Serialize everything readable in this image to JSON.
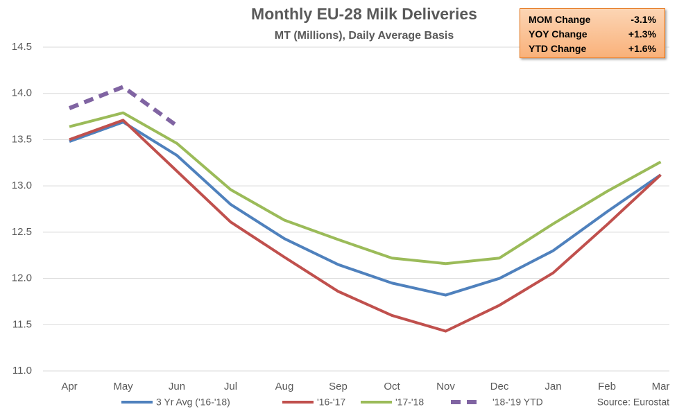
{
  "chart_data": {
    "type": "line",
    "title": "Monthly EU-28 Milk Deliveries",
    "subtitle": "MT (Millions), Daily Average Basis",
    "source": "Source: Eurostat",
    "categories": [
      "Apr",
      "May",
      "Jun",
      "Jul",
      "Aug",
      "Sep",
      "Oct",
      "Nov",
      "Dec",
      "Jan",
      "Feb",
      "Mar"
    ],
    "series": [
      {
        "name": "3 Yr Avg ('16-'18)",
        "color": "#4f81bd",
        "dashed": false,
        "values": [
          13.48,
          13.69,
          13.33,
          12.8,
          12.43,
          12.15,
          11.95,
          11.82,
          12.0,
          12.3,
          12.72,
          13.12
        ]
      },
      {
        "name": "'16-'17",
        "color": "#c0504d",
        "dashed": false,
        "values": [
          13.5,
          13.71,
          13.16,
          12.61,
          12.23,
          11.86,
          11.6,
          11.43,
          11.71,
          12.06,
          12.58,
          13.12
        ]
      },
      {
        "name": "'17-'18",
        "color": "#9bbb59",
        "dashed": false,
        "values": [
          13.64,
          13.79,
          13.46,
          12.96,
          12.63,
          12.42,
          12.22,
          12.16,
          12.22,
          12.59,
          12.94,
          13.26
        ]
      },
      {
        "name": "'18-'19 YTD",
        "color": "#8064a2",
        "dashed": true,
        "values": [
          13.84,
          14.07,
          13.65,
          null,
          null,
          null,
          null,
          null,
          null,
          null,
          null,
          null
        ]
      }
    ],
    "ylim": [
      11.0,
      14.5
    ],
    "yticks": [
      {
        "value": 11.0,
        "label": "11.0"
      },
      11.5,
      {
        "value": 12.0,
        "label": "12.0"
      },
      12.5,
      {
        "value": 13.0,
        "label": "13.0"
      },
      13.5,
      {
        "value": 14.0,
        "label": "14.0"
      },
      14.5
    ],
    "grid": true,
    "legend": "bottom",
    "info_box": [
      {
        "label": "MOM Change",
        "value": "-3.1%"
      },
      {
        "label": "YOY Change",
        "value": "+1.3%"
      },
      {
        "label": "YTD Change",
        "value": "+1.6%"
      }
    ]
  }
}
